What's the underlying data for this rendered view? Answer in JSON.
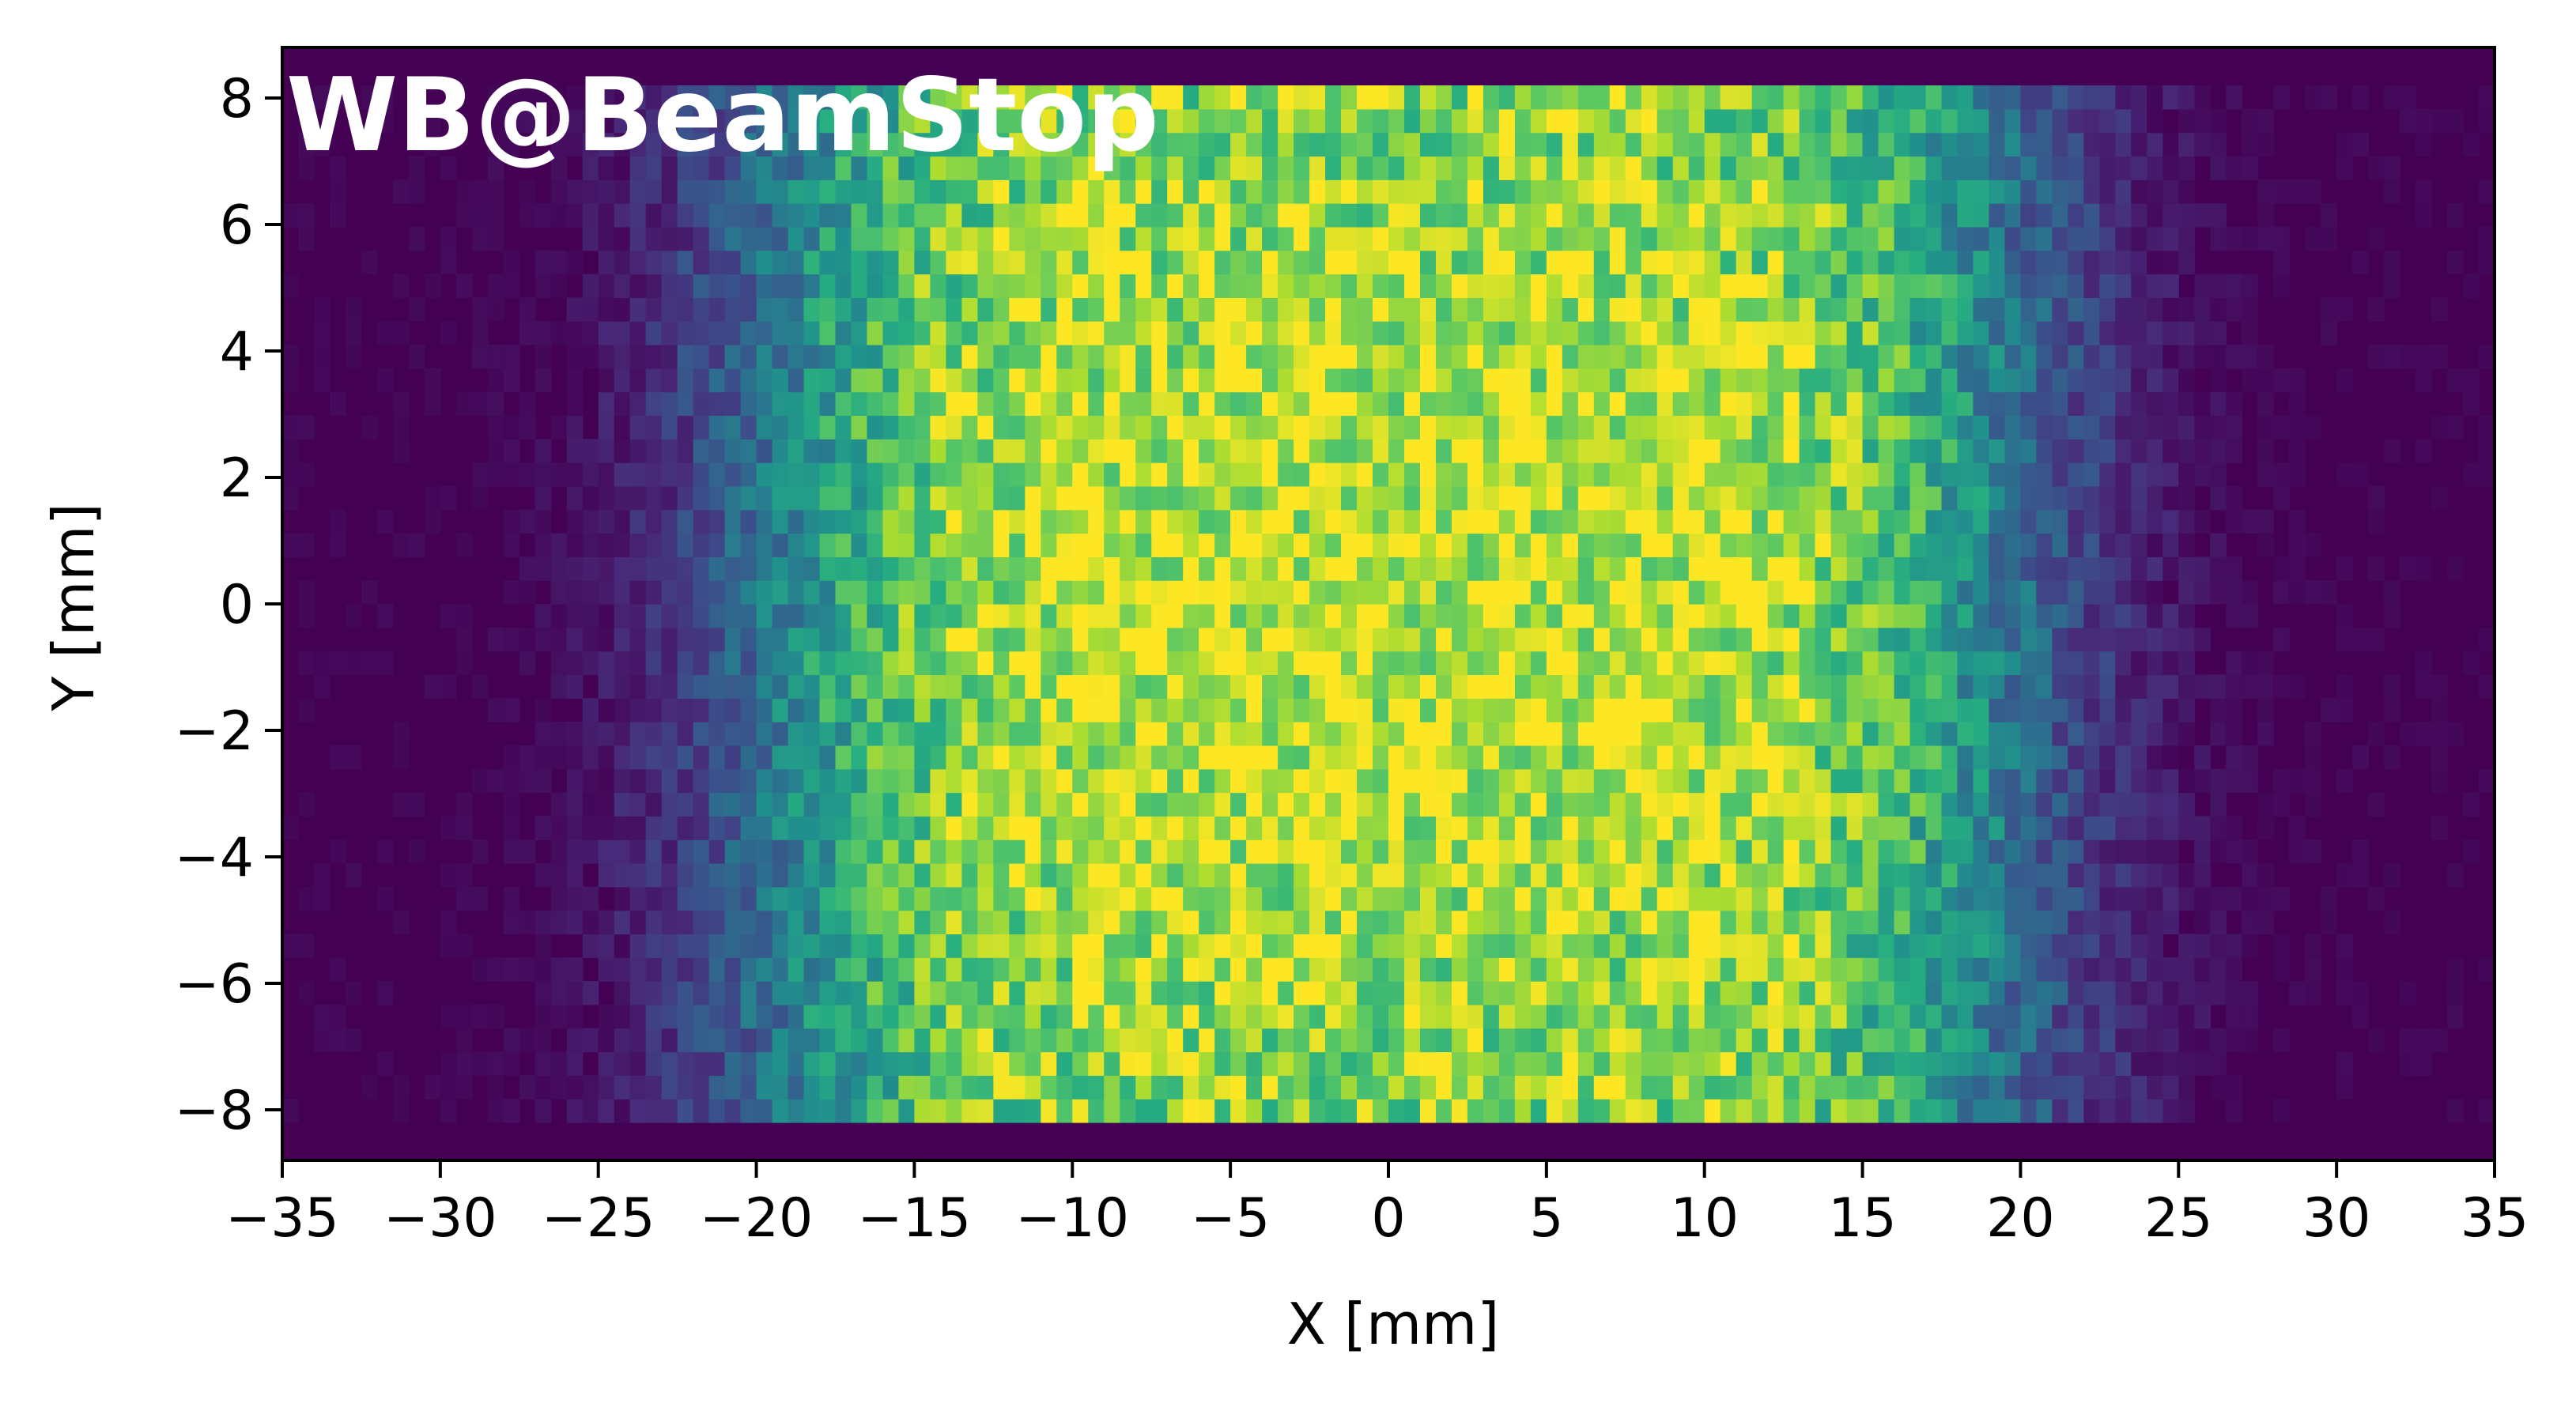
{
  "chart_data": {
    "type": "heatmap",
    "title": "WB@BeamStop",
    "xlabel": "X [mm]",
    "ylabel": "Y [mm]",
    "xlim": [
      -35,
      35
    ],
    "ylim": [
      -8.8,
      8.8
    ],
    "xticks": [
      -35,
      -30,
      -25,
      -20,
      -15,
      -10,
      -5,
      0,
      5,
      10,
      15,
      20,
      25,
      30,
      35
    ],
    "xtick_labels": [
      "−35",
      "−30",
      "−25",
      "−20",
      "−15",
      "−10",
      "−5",
      "0",
      "5",
      "10",
      "15",
      "20",
      "25",
      "30",
      "35"
    ],
    "yticks": [
      -8,
      -6,
      -4,
      -2,
      0,
      2,
      4,
      6,
      8
    ],
    "ytick_labels": [
      "−8",
      "−6",
      "−4",
      "−2",
      "0",
      "2",
      "4",
      "6",
      "8"
    ],
    "colormap": "viridis",
    "colorbar": false,
    "grid": false,
    "distribution": {
      "x_flat_top_half_width": 19,
      "x_edge_sigma": 4,
      "y_half_height": 8.2,
      "peak_region_x": [
        -15,
        15
      ],
      "peak_region_y": [
        -5,
        5
      ]
    },
    "bins": {
      "x": 140,
      "y": 44
    }
  }
}
